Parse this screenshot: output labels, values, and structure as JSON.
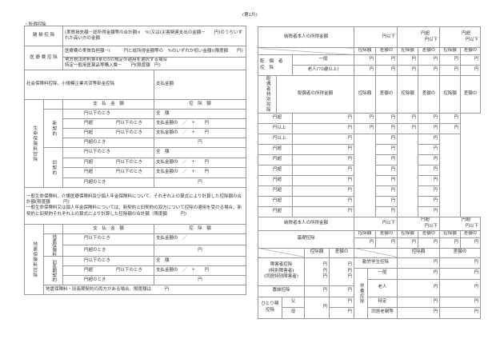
{
  "page_label": "(第2片)",
  "section_title": "・所得控除",
  "left": {
    "zasson": {
      "label": "雑 損 控 除",
      "text": "(実質損失額－総所得金額等の合計額×　%)又は(災害関連支出の金額－　　円)のうちいずれか高い方の金額"
    },
    "iryo": {
      "label": "医 療 費 控 除",
      "text1": "医療費の実質負担額－(　　　円と総所得金額等の　%のいずれか低い金額)(限度額　　円)",
      "text2a": "地方税法附則第4条の5の規定の適用を選択する場合",
      "text2b": "特定一般用医薬品等購入費－　　円(限度額　円)"
    },
    "shakai": {
      "label": "社会保険料控除、小規模企業共済等掛金控除",
      "amount_label": "支払金額"
    },
    "life": {
      "label": "生命保険料控除",
      "col_pay": "支　払　金　額",
      "col_ded": "控　除　額",
      "new": "新契約",
      "old": "旧契約"
    },
    "common": {
      "le": "円以下のとき",
      "over": "円超",
      "over_le": "円以下のとき",
      "over_when": "円超のとき",
      "full": "全　額",
      "formula": "支払金額の　／　＋　　円",
      "formula_short": "支払金額の　／",
      "yen": "円"
    },
    "note1": "一般生命保険料、介護医療保険料及び個人年金保険料について、それぞれ上の算式により計算した控除額の合計額(限度額　　　円)",
    "note2": "一般生命保険料又は個人年金保険料については、新契約と旧契約の双方について控除の適用を受ける場合、新契約と旧契約それぞれ上の算式により計算した控除額の合計額（限度額　　　円)",
    "quake": {
      "label": "地震保険料控除",
      "quake_ins": "地震保険料",
      "old_long": "旧長期契約",
      "both": "地震保険料・旧長期契約の両方がある場合、限度額は　　　円"
    }
  },
  "right": {
    "taxpayer_income": "納税者本人の所得金額",
    "bracket1": "円以下",
    "bracket_over": "円超",
    "bracket_le": "円以下",
    "col_ded": "控除額",
    "col_diff": "差額の",
    "yen": "円",
    "spouse": {
      "label": "配偶者控除",
      "general": "一般",
      "elderly": "老人(70歳以上)"
    },
    "spouse_special": {
      "label": "配偶者特別控除",
      "header": "配偶者の所得金額",
      "rows": [
        [
          "円超",
          "円未満"
        ],
        [
          "円以上",
          "円未満"
        ],
        [
          "円以上",
          "円以下"
        ],
        [
          "円超",
          "円以下"
        ],
        [
          "円超",
          "円以下"
        ],
        [
          "円超",
          "円以下"
        ],
        [
          "円超",
          "円以下"
        ],
        [
          "円超",
          "円以下"
        ],
        [
          "円超",
          "円以下"
        ],
        [
          "円超",
          "円以下"
        ]
      ]
    },
    "basic": "基礎控除",
    "disabled": {
      "label": "障害者控除",
      "special": "(特別障害者)",
      "cohabit": "(同居特別障害者)"
    },
    "widow": "寡婦控除",
    "single_parent": {
      "label": "ひとり親控除",
      "father": "父",
      "mother": "母"
    },
    "working_student": "勤労学生控除",
    "dependent": {
      "label": "扶養控除",
      "general": "一般",
      "elderly": "老人",
      "specific": "特定",
      "parents": "同居老親等"
    }
  }
}
